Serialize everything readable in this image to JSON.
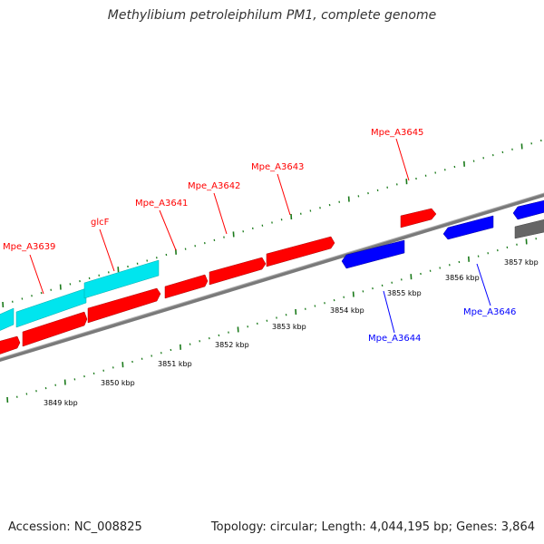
{
  "title": "Methylibium petroleiphilum PM1, complete genome",
  "footer": {
    "accession": "Accession: NC_008825",
    "summary": "Topology: circular; Length: 4,044,195 bp; Genes: 3,864"
  },
  "colors": {
    "forward_gene": "#ff0000",
    "reverse_gene": "#0000ff",
    "cds_feature": "#00e5ee",
    "backbone": "#888888",
    "tick": "#1a7a1a",
    "label_text": "#000000"
  },
  "scale": {
    "labels": [
      "3849 kbp",
      "3850 kbp",
      "3851 kbp",
      "3852 kbp",
      "3853 kbp",
      "3854 kbp",
      "3855 kbp",
      "3856 kbp",
      "3857 kbp"
    ]
  },
  "genes": {
    "forward_labels": [
      "Mpe_A3639",
      "glcF",
      "Mpe_A3641",
      "Mpe_A3642",
      "Mpe_A3643",
      "Mpe_A3645"
    ],
    "reverse_labels": [
      "Mpe_A3644",
      "Mpe_A3646"
    ]
  }
}
